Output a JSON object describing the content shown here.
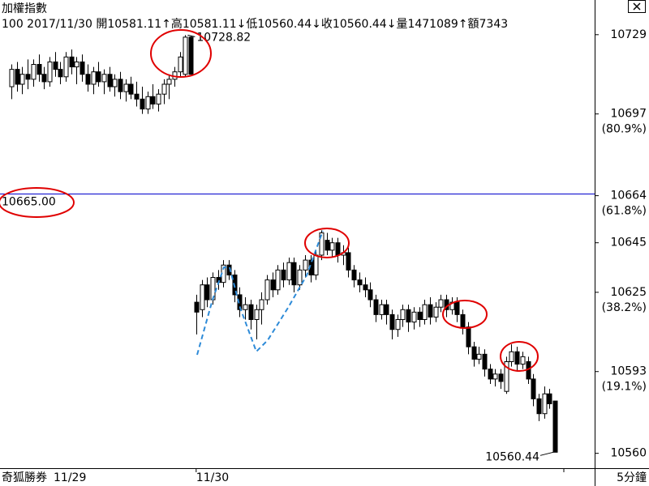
{
  "chart_data": {
    "type": "candlestick",
    "title": "加權指數",
    "subtitle": "100 2017/11/30 開10581.11↑高10581.11↓低10560.44↓收10560.44↓量1471089↑額7343",
    "brand": "奇狐勝券",
    "period": "5分鐘",
    "categories": [
      "11/29",
      null,
      null,
      null,
      null,
      null,
      null,
      null,
      null,
      null,
      null,
      null,
      null,
      null,
      null,
      null,
      null,
      null,
      null,
      null,
      null,
      null,
      null,
      null,
      null,
      null,
      null,
      null,
      null,
      null,
      null,
      null,
      null,
      null,
      "11/30",
      null,
      null,
      null,
      null,
      null,
      null,
      null,
      null,
      null,
      null,
      null,
      null,
      null,
      null,
      null,
      null,
      null,
      null,
      null,
      null,
      null,
      null,
      null,
      null,
      null,
      null,
      null,
      null,
      null,
      null,
      null,
      null,
      null,
      null,
      null,
      null,
      null,
      null,
      null,
      null,
      null,
      null,
      null,
      null,
      null,
      null,
      null,
      null,
      null,
      null,
      null,
      null,
      null,
      null,
      null,
      null,
      null,
      null,
      null,
      null,
      null,
      null,
      null,
      null,
      null,
      null
    ],
    "candles": [
      [
        10708,
        10717,
        10703,
        10715
      ],
      [
        10715,
        10718,
        10706,
        10709
      ],
      [
        10709,
        10716,
        10705,
        10713
      ],
      [
        10713,
        10719,
        10707,
        10711
      ],
      [
        10711,
        10719,
        10708,
        10717
      ],
      [
        10717,
        10721,
        10710,
        10713
      ],
      [
        10713,
        10716,
        10707,
        10710
      ],
      [
        10710,
        10720,
        10708,
        10718
      ],
      [
        10718,
        10722,
        10712,
        10715
      ],
      [
        10715,
        10718,
        10709,
        10712
      ],
      [
        10712,
        10722,
        10710,
        10720
      ],
      [
        10720,
        10723,
        10713,
        10716
      ],
      [
        10716,
        10720,
        10709,
        10718
      ],
      [
        10718,
        10721,
        10710,
        10713
      ],
      [
        10713,
        10717,
        10706,
        10709
      ],
      [
        10709,
        10716,
        10705,
        10714
      ],
      [
        10714,
        10718,
        10708,
        10710
      ],
      [
        10710,
        10715,
        10705,
        10713
      ],
      [
        10713,
        10716,
        10706,
        10708
      ],
      [
        10708,
        10713,
        10704,
        10711
      ],
      [
        10711,
        10714,
        10703,
        10706
      ],
      [
        10706,
        10711,
        10702,
        10709
      ],
      [
        10709,
        10712,
        10703,
        10705
      ],
      [
        10705,
        10710,
        10700,
        10703
      ],
      [
        10703,
        10708,
        10697,
        10699
      ],
      [
        10699,
        10706,
        10697,
        10704
      ],
      [
        10704,
        10709,
        10699,
        10701
      ],
      [
        10701,
        10707,
        10698,
        10705
      ],
      [
        10705,
        10711,
        10701,
        10709
      ],
      [
        10709,
        10713,
        10703,
        10711
      ],
      [
        10711,
        10716,
        10708,
        10714
      ],
      [
        10714,
        10722,
        10712,
        10720
      ],
      [
        10713,
        10728.82,
        10712,
        10728
      ],
      [
        10728,
        10728.5,
        10713,
        10713
      ],
      [
        10621,
        10624,
        10608,
        10617
      ],
      [
        10618,
        10630,
        10615,
        10628
      ],
      [
        10628,
        10631,
        10619,
        10622
      ],
      [
        10622,
        10633,
        10620,
        10631
      ],
      [
        10631,
        10634,
        10626,
        10629
      ],
      [
        10629,
        10638,
        10627,
        10636
      ],
      [
        10636,
        10638,
        10630,
        10632
      ],
      [
        10632,
        10634,
        10621,
        10624
      ],
      [
        10624,
        10627,
        10615,
        10618
      ],
      [
        10618,
        10623,
        10614,
        10620
      ],
      [
        10620,
        10622,
        10610,
        10614
      ],
      [
        10614,
        10620,
        10606,
        10618
      ],
      [
        10618,
        10625,
        10612,
        10622
      ],
      [
        10622,
        10632,
        10620,
        10630
      ],
      [
        10630,
        10633,
        10623,
        10626
      ],
      [
        10626,
        10636,
        10624,
        10634
      ],
      [
        10634,
        10637,
        10627,
        10630
      ],
      [
        10630,
        10639,
        10628,
        10637
      ],
      [
        10637,
        10639,
        10625,
        10628
      ],
      [
        10628,
        10636,
        10626,
        10634
      ],
      [
        10634,
        10640,
        10631,
        10638
      ],
      [
        10638,
        10640,
        10629,
        10632
      ],
      [
        10632,
        10642,
        10630,
        10640
      ],
      [
        10640,
        10650,
        10638,
        10649
      ],
      [
        10646,
        10649,
        10640,
        10642
      ],
      [
        10642,
        10647,
        10639,
        10645
      ],
      [
        10645,
        10647,
        10637,
        10640
      ],
      [
        10640,
        10644,
        10636,
        10641
      ],
      [
        10641,
        10643,
        10631,
        10634
      ],
      [
        10634,
        10636,
        10627,
        10630
      ],
      [
        10630,
        10633,
        10625,
        10628
      ],
      [
        10628,
        10631,
        10623,
        10626
      ],
      [
        10626,
        10629,
        10619,
        10622
      ],
      [
        10622,
        10624,
        10613,
        10616
      ],
      [
        10616,
        10622,
        10614,
        10620
      ],
      [
        10620,
        10622,
        10612,
        10616
      ],
      [
        10616,
        10618,
        10606,
        10610
      ],
      [
        10610,
        10616,
        10607,
        10614
      ],
      [
        10614,
        10620,
        10611,
        10618
      ],
      [
        10618,
        10620,
        10609,
        10613
      ],
      [
        10613,
        10619,
        10610,
        10617
      ],
      [
        10617,
        10619,
        10611,
        10614
      ],
      [
        10614,
        10622,
        10612,
        10620
      ],
      [
        10620,
        10623,
        10612,
        10615
      ],
      [
        10615,
        10621,
        10613,
        10619
      ],
      [
        10619,
        10624,
        10617,
        10622
      ],
      [
        10622,
        10624,
        10615,
        10618
      ],
      [
        10618,
        10623,
        10616,
        10621
      ],
      [
        10621,
        10623,
        10613,
        10616
      ],
      [
        10616,
        10618,
        10608,
        10611
      ],
      [
        10611,
        10613,
        10600,
        10603
      ],
      [
        10603,
        10605,
        10595,
        10598
      ],
      [
        10598,
        10603,
        10596,
        10600
      ],
      [
        10600,
        10602,
        10591,
        10594
      ],
      [
        10594,
        10596,
        10588,
        10590
      ],
      [
        10590,
        10594,
        10587,
        10592
      ],
      [
        10592,
        10594,
        10586,
        10589
      ],
      [
        10585,
        10599,
        10584,
        10597
      ],
      [
        10597,
        10604,
        10595,
        10601
      ],
      [
        10601,
        10603,
        10593,
        10596
      ],
      [
        10596,
        10601,
        10594,
        10599
      ],
      [
        10597,
        10599,
        10588,
        10590
      ],
      [
        10590,
        10592,
        10579,
        10582
      ],
      [
        10582,
        10584,
        10573,
        10576
      ],
      [
        10576,
        10587,
        10574,
        10584
      ],
      [
        10584,
        10586,
        10578,
        10580
      ],
      [
        10581.11,
        10581.11,
        10560.44,
        10560.44
      ]
    ],
    "ylim": [
      10554,
      10743
    ],
    "yticks": [
      10729,
      10697,
      10664,
      10645,
      10625,
      10593,
      10560
    ],
    "fib_levels": [
      {
        "value": 10697,
        "label": "(80.9%)"
      },
      {
        "value": 10664,
        "label": "(61.8%)"
      },
      {
        "value": 10625,
        "label": "(38.2%)"
      },
      {
        "value": 10593,
        "label": "(19.1%)"
      }
    ],
    "hline": {
      "value": 10665,
      "label": "10665.00",
      "color": "#0000cc"
    },
    "high_label": 10728.82,
    "low_label": 10560.44
  }
}
